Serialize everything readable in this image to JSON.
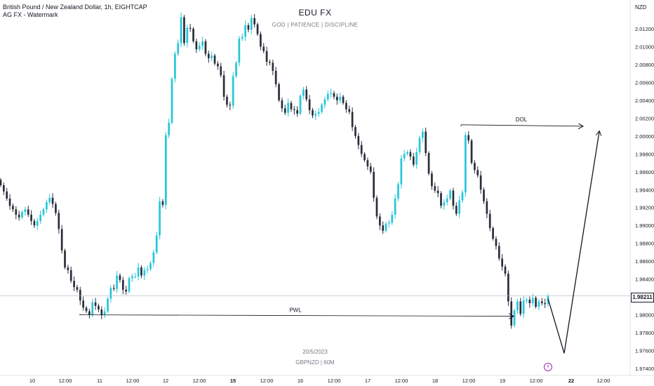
{
  "header": {
    "symbol_line": "British Pound / New Zealand Dollar, 1h, EIGHTCAP",
    "indicator_line": "AG FX - Watermark"
  },
  "watermark": {
    "title": "EDU FX",
    "subtitle": "GOD  |  PATIENCE  |  DISCIPLINE",
    "date": "20/5/2023",
    "symbol": "GBPNZD | 60M"
  },
  "price_scale": {
    "currency": "NZD",
    "last_price": "1.98211"
  },
  "colors": {
    "up": "#26c6da",
    "down": "#2a2e39",
    "accent_bolt": "#9c27b0"
  },
  "chart_data": {
    "type": "candlestick",
    "ylim": [
      1.9735,
      2.0145
    ],
    "y_ticks": [
      "2.01200",
      "2.01000",
      "2.00800",
      "2.00600",
      "2.00400",
      "2.00200",
      "2.00000",
      "1.99800",
      "1.99600",
      "1.99400",
      "1.99200",
      "1.99000",
      "1.98800",
      "1.98600",
      "1.98400",
      "1.98000",
      "1.97800",
      "1.97600",
      "1.97400"
    ],
    "x_ticks": [
      "10",
      "12:00",
      "11",
      "12:00",
      "12",
      "12:00",
      "15",
      "12:00",
      "16",
      "12:00",
      "17",
      "12:00",
      "18",
      "12:00",
      "19",
      "12:00",
      "22",
      "12:00"
    ],
    "x_tick_bold": [
      "15",
      "22"
    ],
    "last_price_value": 1.98211,
    "annotations": [
      {
        "label": "DOL",
        "price": 2.0011,
        "type": "level-arrow"
      },
      {
        "label": "PWL",
        "price": 1.98,
        "type": "level-arrow"
      }
    ],
    "projection": [
      1.9818,
      1.9757,
      2.0005
    ],
    "closes": [
      1.9945,
      1.9938,
      1.993,
      1.9922,
      1.9918,
      1.9912,
      1.9909,
      1.9915,
      1.9918,
      1.9912,
      1.9905,
      1.99,
      1.9905,
      1.9912,
      1.9918,
      1.9926,
      1.9931,
      1.9924,
      1.9914,
      1.9896,
      1.9872,
      1.9853,
      1.985,
      1.9838,
      1.9831,
      1.9828,
      1.9816,
      1.9808,
      1.9804,
      1.98,
      1.9814,
      1.981,
      1.9806,
      1.98,
      1.9804,
      1.9818,
      1.983,
      1.9829,
      1.9844,
      1.9839,
      1.9828,
      1.9826,
      1.9841,
      1.9843,
      1.9843,
      1.9853,
      1.9844,
      1.985,
      1.9851,
      1.9858,
      1.987,
      1.9889,
      1.9927,
      1.9923,
      2.0001,
      2.0015,
      2.0064,
      2.0092,
      2.0104,
      2.0133,
      2.0104,
      2.0121,
      2.012,
      2.0106,
      2.0097,
      2.0101,
      2.0106,
      2.0092,
      2.0087,
      2.009,
      2.0081,
      2.0078,
      2.0068,
      2.0044,
      2.0035,
      2.0034,
      2.0067,
      2.0082,
      2.0109,
      2.0111,
      2.0124,
      2.0119,
      2.0132,
      2.0125,
      2.0114,
      2.01,
      2.0095,
      2.0083,
      2.0082,
      2.0073,
      2.0058,
      2.004,
      2.0031,
      2.0026,
      2.0037,
      2.003,
      2.0029,
      2.0025,
      2.0045,
      2.0052,
      2.0041,
      2.0029,
      2.0023,
      2.0025,
      2.0027,
      2.0035,
      2.0041,
      2.0047,
      2.0048,
      2.0044,
      2.004,
      2.0044,
      2.0037,
      2.003,
      2.0027,
      2.001,
      2.0,
      1.999,
      1.998,
      1.9973,
      1.9966,
      1.996,
      1.9931,
      1.991,
      1.99,
      1.9894,
      1.9902,
      1.9903,
      1.9912,
      1.993,
      1.9946,
      1.9975,
      1.998,
      1.9982,
      1.9977,
      1.9968,
      1.9982,
      1.9998,
      2.0005,
      1.9981,
      1.9958,
      1.9944,
      1.9939,
      1.9936,
      1.9922,
      1.9926,
      1.993,
      1.9939,
      1.9922,
      1.9913,
      1.9928,
      1.9937,
      2.0001,
      1.9995,
      1.997,
      1.9962,
      1.9956,
      1.994,
      1.9927,
      1.9913,
      1.9897,
      1.9885,
      1.9877,
      1.9863,
      1.9854,
      1.9846,
      1.9815,
      1.9788,
      1.9805,
      1.9815,
      1.9801,
      1.9816,
      1.9817,
      1.9813,
      1.9819,
      1.9809,
      1.9815,
      1.9813,
      1.9812,
      1.9821
    ]
  }
}
